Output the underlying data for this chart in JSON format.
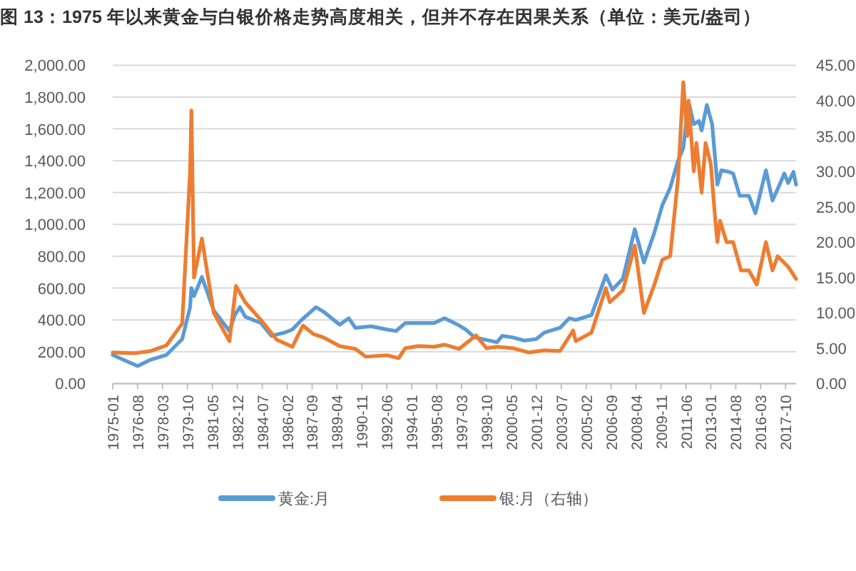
{
  "chart_data": {
    "type": "line",
    "title": "图 13：1975 年以来黄金与白银价格走势高度相关，但并不存在因果关系（单位：美元/盎司）",
    "series": [
      {
        "name": "黄金:月",
        "color": "#5b9bd5",
        "x": [
          "1975-01",
          "1976-08",
          "1977-06",
          "1978-06",
          "1979-06",
          "1979-12",
          "1980-01",
          "1980-03",
          "1980-09",
          "1981-06",
          "1982-06",
          "1982-10",
          "1983-02",
          "1983-06",
          "1984-06",
          "1985-02",
          "1985-12",
          "1986-06",
          "1987-01",
          "1987-12",
          "1988-06",
          "1989-06",
          "1990-01",
          "1990-06",
          "1991-06",
          "1992-06",
          "1993-01",
          "1993-08",
          "1994-06",
          "1995-06",
          "1996-02",
          "1996-12",
          "1997-06",
          "1998-01",
          "1999-06",
          "1999-10",
          "2000-06",
          "2001-03",
          "2001-12",
          "2002-06",
          "2003-06",
          "2004-01",
          "2004-06",
          "2005-06",
          "2006-05",
          "2006-10",
          "2007-06",
          "2008-03",
          "2008-10",
          "2009-06",
          "2009-12",
          "2010-06",
          "2010-12",
          "2011-04",
          "2011-08",
          "2011-12",
          "2012-04",
          "2012-06",
          "2012-10",
          "2013-02",
          "2013-06",
          "2013-09",
          "2014-03",
          "2014-06",
          "2014-11",
          "2015-06",
          "2015-11",
          "2016-07",
          "2016-12",
          "2017-06",
          "2017-09",
          "2017-12",
          "2018-04",
          "2018-06"
        ],
        "values": [
          180,
          110,
          150,
          180,
          280,
          480,
          600,
          550,
          670,
          460,
          330,
          430,
          480,
          420,
          380,
          300,
          320,
          340,
          400,
          480,
          450,
          370,
          410,
          350,
          360,
          340,
          330,
          380,
          380,
          380,
          410,
          370,
          340,
          290,
          260,
          300,
          290,
          270,
          280,
          320,
          350,
          410,
          400,
          430,
          680,
          590,
          660,
          970,
          760,
          950,
          1120,
          1230,
          1400,
          1480,
          1770,
          1630,
          1650,
          1590,
          1750,
          1630,
          1250,
          1340,
          1330,
          1320,
          1180,
          1180,
          1070,
          1340,
          1150,
          1260,
          1320,
          1260,
          1330,
          1250
        ]
      },
      {
        "name": "银:月（右轴）",
        "color": "#ed7d31",
        "axis": "y2",
        "x": [
          "1975-01",
          "1976-06",
          "1977-06",
          "1978-06",
          "1979-06",
          "1979-12",
          "1980-01",
          "1980-03",
          "1980-09",
          "1981-06",
          "1982-06",
          "1982-11",
          "1983-06",
          "1984-06",
          "1985-06",
          "1986-06",
          "1987-02",
          "1987-10",
          "1988-06",
          "1989-06",
          "1990-06",
          "1991-02",
          "1992-06",
          "1993-03",
          "1993-08",
          "1994-06",
          "1995-06",
          "1996-02",
          "1997-01",
          "1998-02",
          "1998-10",
          "1999-06",
          "2000-06",
          "2001-06",
          "2002-06",
          "2003-06",
          "2004-04",
          "2004-06",
          "2005-06",
          "2006-05",
          "2006-08",
          "2007-06",
          "2008-03",
          "2008-10",
          "2009-06",
          "2009-12",
          "2010-06",
          "2010-12",
          "2011-04",
          "2011-07",
          "2011-08",
          "2011-12",
          "2012-02",
          "2012-06",
          "2012-09",
          "2013-01",
          "2013-04",
          "2013-06",
          "2013-08",
          "2014-01",
          "2014-06",
          "2014-12",
          "2015-06",
          "2015-12",
          "2016-07",
          "2016-12",
          "2017-04",
          "2017-12",
          "2018-06"
        ],
        "values": [
          4.4,
          4.3,
          4.6,
          5.4,
          8.5,
          30,
          38.6,
          15,
          20.5,
          10,
          6,
          13.8,
          11.5,
          9,
          6.2,
          5.2,
          8.2,
          7,
          6.5,
          5.3,
          4.9,
          3.8,
          4,
          3.6,
          5,
          5.3,
          5.2,
          5.5,
          4.9,
          6.8,
          5,
          5.2,
          5,
          4.4,
          4.7,
          4.6,
          7.5,
          6,
          7.2,
          13.5,
          11.5,
          13.2,
          19.5,
          10,
          14,
          17.5,
          18,
          29,
          42.6,
          35,
          40,
          30,
          34,
          27,
          34,
          31,
          24,
          20,
          23,
          20,
          20,
          16,
          16,
          14,
          20,
          16,
          18,
          16.5,
          14.8
        ]
      }
    ],
    "xlim": [
      "1975-01",
      "2018-06"
    ],
    "xticks": [
      "1975-01",
      "1976-08",
      "1978-03",
      "1979-10",
      "1981-05",
      "1982-12",
      "1984-07",
      "1986-02",
      "1987-09",
      "1989-04",
      "1990-11",
      "1992-06",
      "1994-01",
      "1995-08",
      "1997-03",
      "1998-10",
      "2000-05",
      "2001-12",
      "2003-07",
      "2005-02",
      "2006-09",
      "2008-04",
      "2009-11",
      "2011-06",
      "2013-01",
      "2014-08",
      "2016-03",
      "2017-10"
    ],
    "ylim": [
      0,
      2000
    ],
    "yticks": [
      {
        "value": 0,
        "label": "0.00"
      },
      {
        "value": 200,
        "label": "200.00"
      },
      {
        "value": 400,
        "label": "400.00"
      },
      {
        "value": 600,
        "label": "600.00"
      },
      {
        "value": 800,
        "label": "800.00"
      },
      {
        "value": 1000,
        "label": "1,000.00"
      },
      {
        "value": 1200,
        "label": "1,200.00"
      },
      {
        "value": 1400,
        "label": "1,400.00"
      },
      {
        "value": 1600,
        "label": "1,600.00"
      },
      {
        "value": 1800,
        "label": "1,800.00"
      },
      {
        "value": 2000,
        "label": "2,000.00"
      }
    ],
    "y2lim": [
      0,
      45
    ],
    "y2ticks": [
      {
        "value": 0,
        "label": "0.00"
      },
      {
        "value": 5,
        "label": "5.00"
      },
      {
        "value": 10,
        "label": "10.00"
      },
      {
        "value": 15,
        "label": "15.00"
      },
      {
        "value": 20,
        "label": "20.00"
      },
      {
        "value": 25,
        "label": "25.00"
      },
      {
        "value": 30,
        "label": "30.00"
      },
      {
        "value": 35,
        "label": "35.00"
      },
      {
        "value": 40,
        "label": "40.00"
      },
      {
        "value": 45,
        "label": "45.00"
      }
    ],
    "grid": "y",
    "legend": "bottom",
    "marker": "none",
    "line_style": "solid"
  }
}
